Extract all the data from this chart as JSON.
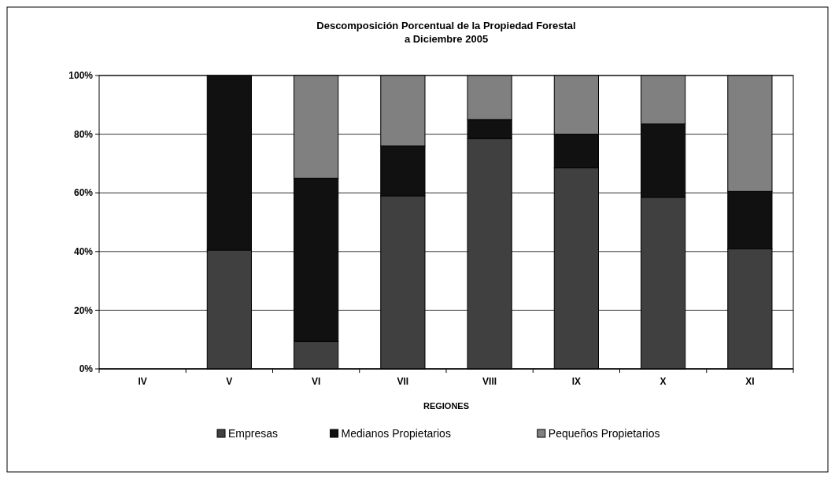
{
  "chart_data": {
    "type": "bar",
    "title": "Descomposición Porcentual de la Propiedad Forestal\na Diciembre 2005",
    "xlabel": "REGIONES",
    "categories": [
      "IV",
      "V",
      "VI",
      "VII",
      "VIII",
      "IX",
      "X",
      "XI"
    ],
    "series": [
      {
        "name": "Empresas",
        "color": "#404040",
        "values": [
          0,
          40.5,
          9.3,
          59,
          78.5,
          68.5,
          58.5,
          41
        ]
      },
      {
        "name": "Medianos Propietarios",
        "color": "#111111",
        "values": [
          0,
          59.5,
          55.7,
          17,
          6.5,
          11.5,
          25,
          19.5
        ]
      },
      {
        "name": "Pequeños Propietarios",
        "color": "#808080",
        "values": [
          0,
          0,
          35,
          24,
          15,
          20,
          16.5,
          39.5
        ]
      }
    ],
    "stacked": true,
    "ylim": [
      0,
      100
    ],
    "yticks": [
      {
        "value": 0,
        "label": "0%"
      },
      {
        "value": 20,
        "label": "20%"
      },
      {
        "value": 40,
        "label": "40%"
      },
      {
        "value": 60,
        "label": "60%"
      },
      {
        "value": 80,
        "label": "80%"
      },
      {
        "value": 100,
        "label": "100%"
      }
    ],
    "grid": "y",
    "legend": "bottom"
  }
}
